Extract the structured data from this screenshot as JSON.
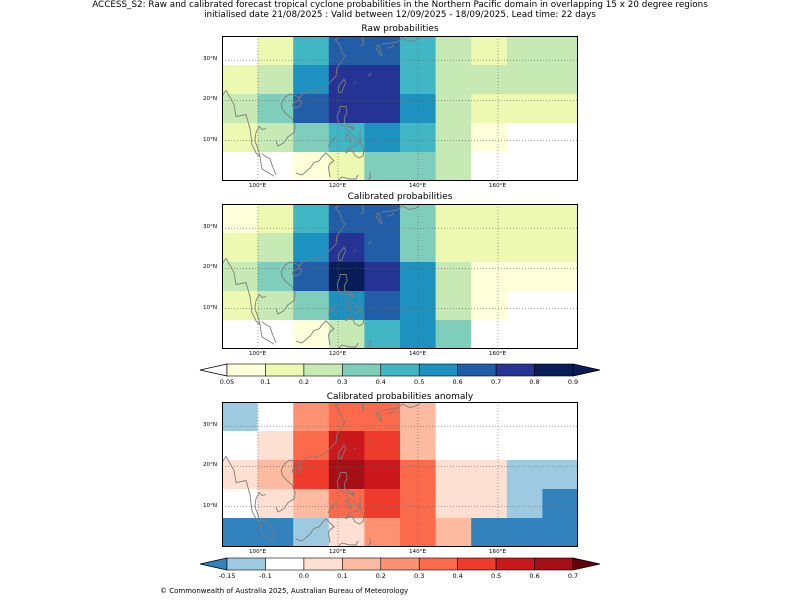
{
  "title_line1": "ACCESS_S2: Raw and calibrated forecast tropical cyclone probabilities in the Northern Pacific domain in overlapping 15 x 20 degree regions",
  "title_line2": "initialised date 21/08/2025 :  Valid between 12/09/2025 - 18/09/2025. Lead time: 22 days",
  "panels": [
    {
      "title": "Raw probabilities"
    },
    {
      "title": "Calibrated probabilities"
    },
    {
      "title": "Calibrated probabilities anomaly"
    }
  ],
  "map": {
    "lon_labels": [
      "100°E",
      "120°E",
      "140°E",
      "160°E"
    ],
    "lat_labels": [
      "30°N",
      "20°N",
      "10°N"
    ],
    "lon_range": [
      91,
      180
    ],
    "lat_range": [
      0,
      36
    ],
    "gridlines": "dotted"
  },
  "colorbar_prob": {
    "ticks": [
      "0.05",
      "0.1",
      "0.2",
      "0.3",
      "0.4",
      "0.5",
      "0.6",
      "0.7",
      "0.8",
      "0.9"
    ],
    "colors": [
      "#ffffd9",
      "#edf8b1",
      "#c7e9b4",
      "#7fcdbb",
      "#41b6c4",
      "#1d91c0",
      "#225ea8",
      "#253494",
      "#081d58"
    ],
    "under_color": "#ffffff",
    "over_color": "#081d58"
  },
  "colorbar_anom": {
    "ticks": [
      "-0.15",
      "-0.1",
      "0.0",
      "0.1",
      "0.2",
      "0.3",
      "0.4",
      "0.5",
      "0.6",
      "0.7"
    ],
    "colors": [
      "#9ecae1",
      "#ffffff",
      "#fee0d2",
      "#fcbba1",
      "#fc9272",
      "#fb6a4a",
      "#ef3b2c",
      "#cb181d",
      "#a50f15"
    ],
    "under_color": "#3182bd",
    "over_color": "#67000d"
  },
  "grids": {
    "raw": [
      [
        "#ffffff",
        "#edf8b1",
        "#41b6c4",
        "#225ea8",
        "#225ea8",
        "#41b6c4",
        "#c7e9b4",
        "#edf8b1",
        "#c7e9b4",
        "#c7e9b4"
      ],
      [
        "#edf8b1",
        "#c7e9b4",
        "#1d91c0",
        "#253494",
        "#253494",
        "#41b6c4",
        "#c7e9b4",
        "#c7e9b4",
        "#c7e9b4",
        "#c7e9b4"
      ],
      [
        "#c7e9b4",
        "#7fcdbb",
        "#225ea8",
        "#253494",
        "#253494",
        "#1d91c0",
        "#c7e9b4",
        "#edf8b1",
        "#edf8b1",
        "#edf8b1"
      ],
      [
        "#edf8b1",
        "#c7e9b4",
        "#7fcdbb",
        "#41b6c4",
        "#1d91c0",
        "#41b6c4",
        "#c7e9b4",
        "#ffffd9",
        "#ffffff",
        "#ffffff"
      ],
      [
        "#ffffff",
        "#ffffff",
        "#ffffd9",
        "#edf8b1",
        "#7fcdbb",
        "#7fcdbb",
        "#c7e9b4",
        "#ffffff",
        "#ffffff",
        "#ffffff"
      ]
    ],
    "calibrated": [
      [
        "#ffffd9",
        "#edf8b1",
        "#41b6c4",
        "#225ea8",
        "#225ea8",
        "#7fcdbb",
        "#edf8b1",
        "#edf8b1",
        "#edf8b1",
        "#edf8b1"
      ],
      [
        "#edf8b1",
        "#c7e9b4",
        "#1d91c0",
        "#253494",
        "#225ea8",
        "#7fcdbb",
        "#edf8b1",
        "#edf8b1",
        "#edf8b1",
        "#edf8b1"
      ],
      [
        "#c7e9b4",
        "#7fcdbb",
        "#225ea8",
        "#081d58",
        "#253494",
        "#1d91c0",
        "#c7e9b4",
        "#ffffd9",
        "#ffffd9",
        "#ffffd9"
      ],
      [
        "#edf8b1",
        "#c7e9b4",
        "#7fcdbb",
        "#1d91c0",
        "#225ea8",
        "#1d91c0",
        "#c7e9b4",
        "#ffffd9",
        "#ffffff",
        "#ffffff"
      ],
      [
        "#ffffff",
        "#ffffff",
        "#ffffd9",
        "#c7e9b4",
        "#41b6c4",
        "#1d91c0",
        "#7fcdbb",
        "#ffffff",
        "#ffffff",
        "#ffffff"
      ]
    ],
    "anomaly": [
      [
        "#9ecae1",
        "#ffffff",
        "#fc9272",
        "#fb6a4a",
        "#fb6a4a",
        "#fcbba1",
        "#ffffff",
        "#ffffff",
        "#ffffff",
        "#ffffff"
      ],
      [
        "#ffffff",
        "#fee0d2",
        "#fb6a4a",
        "#cb181d",
        "#ef3b2c",
        "#fcbba1",
        "#ffffff",
        "#ffffff",
        "#ffffff",
        "#ffffff"
      ],
      [
        "#fee0d2",
        "#fcbba1",
        "#ef3b2c",
        "#a50f15",
        "#cb181d",
        "#fb6a4a",
        "#fee0d2",
        "#fee0d2",
        "#9ecae1",
        "#9ecae1"
      ],
      [
        "#ffffff",
        "#fee0d2",
        "#fcbba1",
        "#fb6a4a",
        "#ef3b2c",
        "#fb6a4a",
        "#fee0d2",
        "#fee0d2",
        "#9ecae1",
        "#3182bd"
      ],
      [
        "#3182bd",
        "#3182bd",
        "#9ecae1",
        "#fee0d2",
        "#fc9272",
        "#fb6a4a",
        "#fcbba1",
        "#3182bd",
        "#3182bd",
        "#3182bd"
      ]
    ]
  },
  "copyright": "© Commonwealth of Australia 2025, Australian Bureau of Meteorology"
}
